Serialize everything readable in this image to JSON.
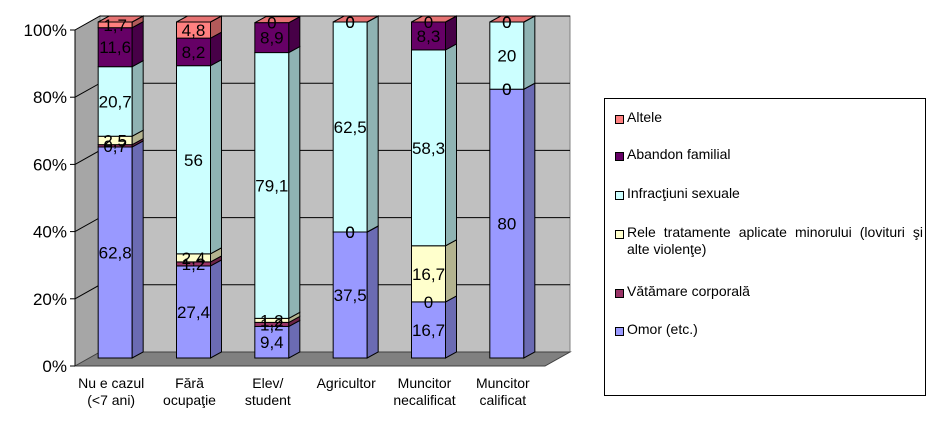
{
  "chart_data": {
    "type": "stacked-bar-3d",
    "categories": [
      [
        "Nu e cazul",
        "(<7 ani)"
      ],
      [
        "Fără",
        "ocupaţie"
      ],
      [
        "Elev/",
        "student"
      ],
      [
        "Agricultor"
      ],
      [
        "Muncitor",
        "necalificat"
      ],
      [
        "Muncitor",
        "calificat"
      ]
    ],
    "y_ticks": [
      "0%",
      "20%",
      "40%",
      "60%",
      "80%",
      "100%"
    ],
    "ylim": [
      0,
      100
    ],
    "series": [
      {
        "name": "Omor (etc.)",
        "color": "#9999FF",
        "values": [
          62.8,
          27.4,
          9.4,
          37.5,
          16.7,
          80
        ],
        "labels": [
          "62,8",
          "27,4",
          "9,4",
          "37,5",
          "16,7",
          "80"
        ]
      },
      {
        "name": "Vătămare corporală",
        "color": "#993366",
        "values": [
          0.7,
          1.2,
          1.2,
          0,
          0,
          0
        ],
        "labels": [
          "0,7",
          "1,2",
          "1,2",
          "0",
          "0",
          "0"
        ]
      },
      {
        "name": "Rele tratamente aplicate minorului (lovituri şi alte violenţe)",
        "color": "#FFFFCC",
        "values": [
          2.5,
          2.4,
          1.2,
          0,
          16.7,
          0
        ],
        "labels": [
          "2,5",
          "2,4",
          "1,2",
          "0",
          "16,7",
          "0"
        ]
      },
      {
        "name": "Infracţiuni sexuale",
        "color": "#CCFFFF",
        "values": [
          20.7,
          56,
          79.1,
          62.5,
          58.3,
          20
        ],
        "labels": [
          "20,7",
          "56",
          "79,1",
          "62,5",
          "58,3",
          "20"
        ]
      },
      {
        "name": "Abandon familial",
        "color": "#660066",
        "values": [
          11.6,
          8.2,
          8.9,
          0,
          8.3,
          0
        ],
        "labels": [
          "11,6",
          "8,2",
          "8,9",
          "0",
          "8,3",
          "0"
        ]
      },
      {
        "name": "Altele",
        "color": "#FF8080",
        "values": [
          1.7,
          4.8,
          0,
          0,
          0,
          0
        ],
        "labels": [
          "1,7",
          "4,8",
          "0",
          "0",
          "0",
          "0"
        ]
      }
    ],
    "legend_order": [
      5,
      4,
      3,
      2,
      1,
      0
    ],
    "legend_position": "right",
    "grid": true
  }
}
